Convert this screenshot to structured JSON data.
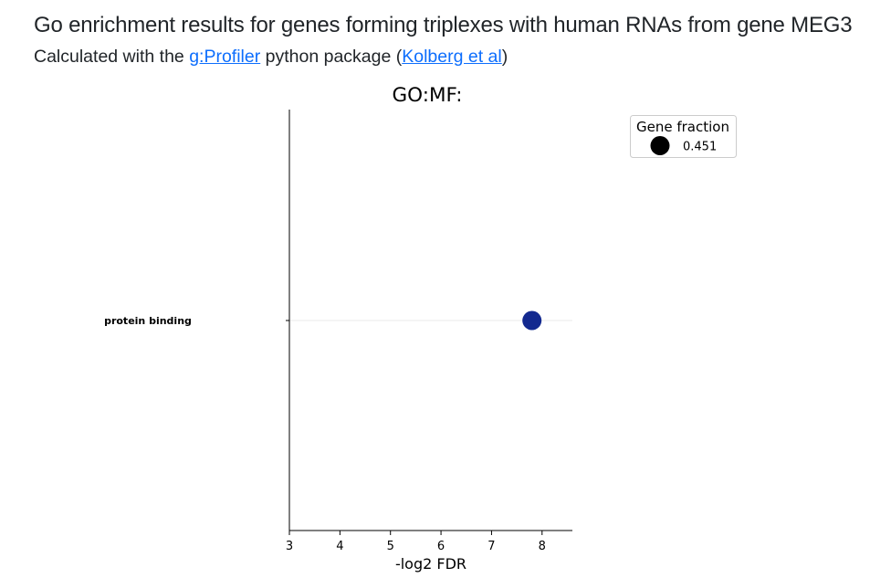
{
  "header": {
    "title": "Go enrichment results for genes forming triplexes with human RNAs from gene MEG3",
    "subtitle_prefix": "Calculated with the ",
    "link1_label": "g:Profiler",
    "subtitle_middle": " python package (",
    "link2_label": "Kolberg et al",
    "subtitle_suffix": ")"
  },
  "chart_data": {
    "type": "scatter",
    "title": "GO:MF:",
    "xlabel": "-log2 FDR",
    "ylabel": "",
    "xlim": [
      3,
      8.6
    ],
    "x_ticks": [
      3,
      4,
      5,
      6,
      7,
      8
    ],
    "categories": [
      "protein binding"
    ],
    "points": [
      {
        "term": "protein binding",
        "x": 7.8,
        "gene_fraction": 0.451
      }
    ],
    "point_color": "#13298f",
    "legend": {
      "title": "Gene fraction",
      "entries": [
        {
          "label": "0.451",
          "color": "#000000"
        }
      ],
      "placement": "top-right"
    },
    "grid": "horizontal"
  }
}
